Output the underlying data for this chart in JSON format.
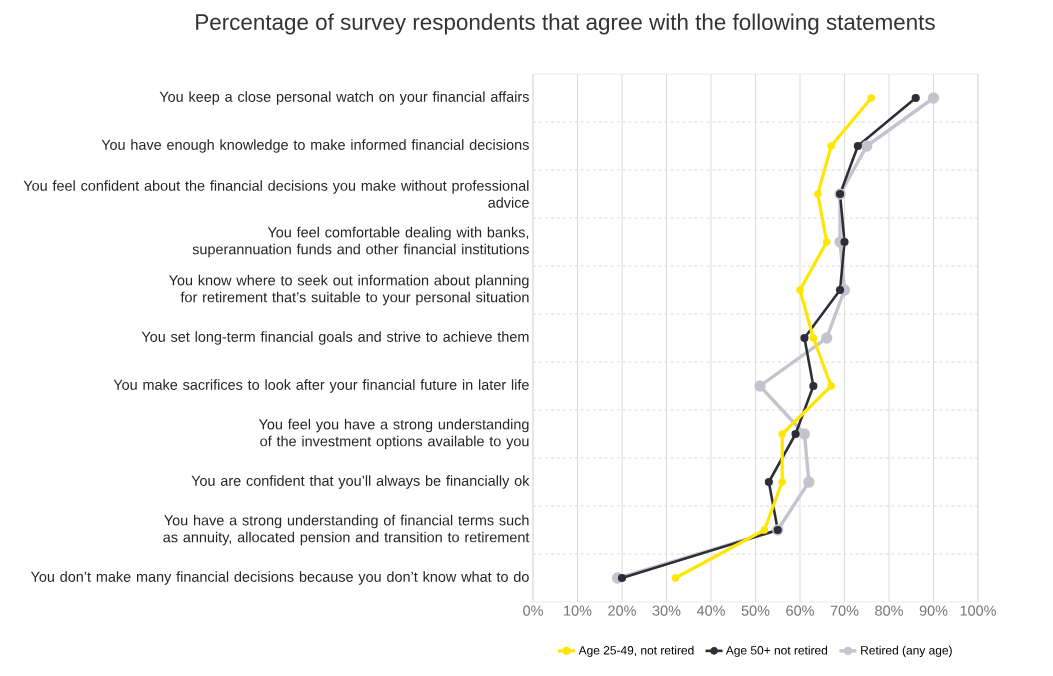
{
  "chart_data": {
    "type": "line",
    "orientation": "horizontal",
    "title": "Percentage of survey respondents that agree with the following statements",
    "categories": [
      "You keep a close personal watch on your financial affairs",
      "You have enough knowledge to make informed financial decisions",
      "You feel confident about the financial decisions you make without professional advice",
      "You feel comfortable dealing with banks, superannuation funds and other financial institutions",
      "You know where to seek out information about planning for retirement that’s suitable to your personal situation",
      "You set long-term financial goals and strive to achieve them",
      "You make sacrifices to look after your financial future in later life",
      "You feel you have a strong understanding of the investment options available to you",
      "You are confident that you’ll always be financially ok",
      "You have a strong understanding of financial terms such as annuity, allocated pension and transition to retirement",
      "You don’t make many financial decisions because you don’t know what to do"
    ],
    "series": [
      {
        "name": "Age 25-49, not retired",
        "color": "#ffe600",
        "values": [
          76,
          67,
          64,
          66,
          60,
          63,
          67,
          56,
          56,
          52,
          32
        ]
      },
      {
        "name": "Age 50+ not retired",
        "color": "#2e2e38",
        "values": [
          86,
          73,
          69,
          70,
          69,
          61,
          63,
          59,
          53,
          55,
          20
        ]
      },
      {
        "name": "Retired (any age)",
        "color": "#c4c4cd",
        "values": [
          90,
          75,
          69,
          69,
          70,
          66,
          51,
          61,
          62,
          55,
          19
        ]
      }
    ],
    "xlim": [
      0,
      100
    ],
    "xticks": [
      {
        "value": 0,
        "label": "0%"
      },
      {
        "value": 10,
        "label": "10%"
      },
      {
        "value": 20,
        "label": "20%"
      },
      {
        "value": 30,
        "label": "30%"
      },
      {
        "value": 40,
        "label": "40%"
      },
      {
        "value": 50,
        "label": "50%"
      },
      {
        "value": 60,
        "label": "60%"
      },
      {
        "value": 70,
        "label": "70%"
      },
      {
        "value": 80,
        "label": "80%"
      },
      {
        "value": 90,
        "label": "90%"
      },
      {
        "value": 100,
        "label": "100%"
      }
    ],
    "grid": true,
    "legend": "bottom",
    "marker": "circle",
    "line_style": "solid"
  }
}
